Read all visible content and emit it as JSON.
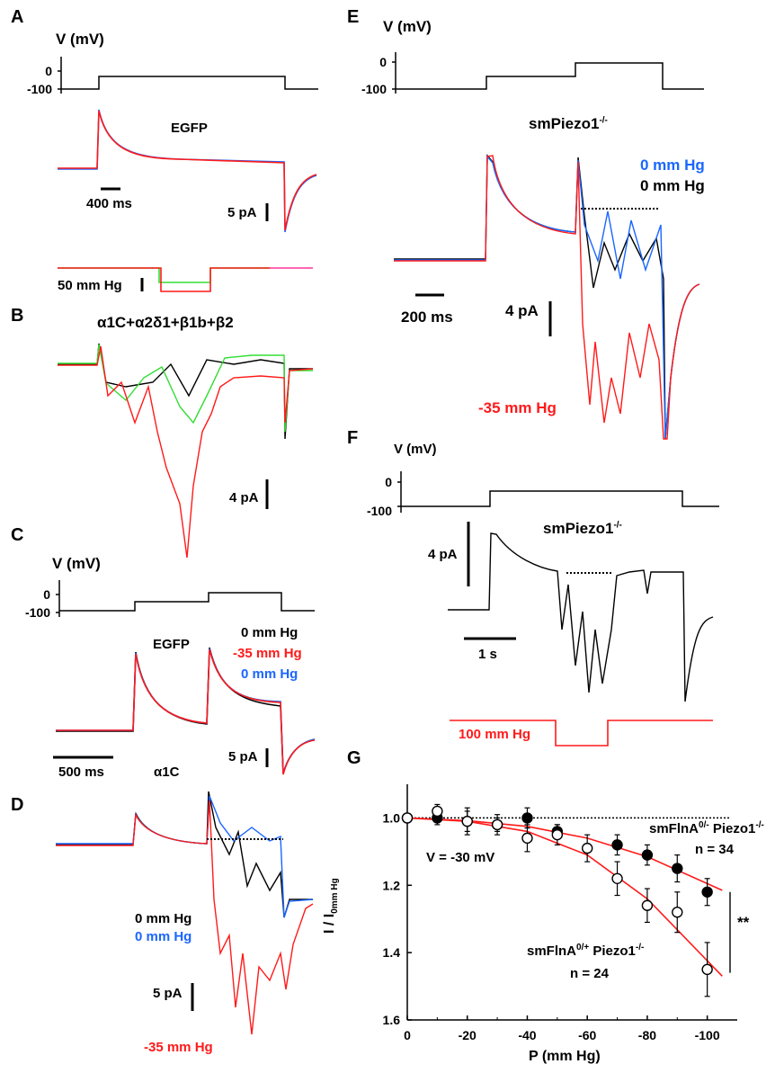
{
  "panels": {
    "A": {
      "letter": "A",
      "v_axis": {
        "title": "V (mV)",
        "ticks": [
          "0",
          "-100"
        ]
      },
      "condition": "EGFP",
      "time_scale": "400 ms",
      "current_scale": "5 pA",
      "pressure_scale": "50 mm Hg"
    },
    "B": {
      "letter": "B",
      "subunits": "α1C+α2δ1+β1b+β2",
      "current_scale": "4 pA"
    },
    "C": {
      "letter": "C",
      "v_axis": {
        "title": "V (mV)",
        "ticks": [
          "0",
          "-100"
        ]
      },
      "condition": "EGFP",
      "legend": [
        "0 mm Hg",
        "-35 mm Hg",
        "0 mm Hg"
      ],
      "time_scale": "500 ms",
      "current_scale": "5 pA",
      "subunit": "α1C"
    },
    "D": {
      "letter": "D",
      "legend": [
        "0 mm Hg",
        "0 mm Hg"
      ],
      "current_scale": "5 pA",
      "pressure": "-35 mm Hg"
    },
    "E": {
      "letter": "E",
      "v_axis": {
        "title": "V (mV)",
        "ticks": [
          "0",
          "-100"
        ]
      },
      "genotype": "smPiezo1",
      "genotype_sup": "-/-",
      "legend": [
        "0 mm Hg",
        "0 mm Hg"
      ],
      "time_scale": "200 ms",
      "current_scale": "4 pA",
      "pressure": "-35 mm Hg"
    },
    "F": {
      "letter": "F",
      "v_axis": {
        "title": "V (mV)",
        "ticks": [
          "0",
          "-100"
        ]
      },
      "genotype": "smPiezo1",
      "genotype_sup": "-/-",
      "current_scale": "4 pA",
      "time_scale": "1 s",
      "pressure": "100 mm Hg"
    },
    "G": {
      "letter": "G",
      "voltage": "V = -30 mV",
      "group1": {
        "name": "smFlnA",
        "sup1": "0/-",
        "name2": " Piezo1",
        "sup2": "-/-",
        "n": "n = 34"
      },
      "group2": {
        "name": "smFlnA",
        "sup1": "0/+",
        "name2": " Piezo1",
        "sup2": "-/-",
        "n": "n = 24"
      },
      "significance": "**",
      "ylabel_main": "I / I",
      "ylabel_sub": "0mm Hg"
    }
  },
  "colors": {
    "red": "#ff1a1a",
    "blue": "#1a66ff",
    "green": "#33dd33",
    "black": "#000000",
    "pink": "#ff3399"
  },
  "chart_data": {
    "type": "scatter",
    "title": "",
    "xlabel": "P (mm Hg)",
    "ylabel": "I / I0mm Hg",
    "x_ticks": [
      "0",
      "-20",
      "-40",
      "-60",
      "-80",
      "-100"
    ],
    "y_ticks": [
      "1.0",
      "1.2",
      "1.4",
      "1.6"
    ],
    "xlim": [
      0,
      -110
    ],
    "ylim": [
      0.9,
      1.6
    ],
    "y_inverted": true,
    "reference_line": 1.0,
    "series": [
      {
        "marker": "filled-circle",
        "x": [
          0,
          -10,
          -20,
          -30,
          -40,
          -50,
          -70,
          -80,
          -90,
          -100
        ],
        "y": [
          1.0,
          1.0,
          1.01,
          1.02,
          1.0,
          1.04,
          1.08,
          1.11,
          1.15,
          1.22
        ],
        "err": [
          0.01,
          0.02,
          0.03,
          0.02,
          0.03,
          0.02,
          0.03,
          0.03,
          0.04,
          0.04
        ]
      },
      {
        "marker": "open-circle",
        "x": [
          0,
          -10,
          -20,
          -30,
          -40,
          -50,
          -60,
          -70,
          -80,
          -90,
          -100
        ],
        "y": [
          1.0,
          0.98,
          1.01,
          1.02,
          1.06,
          1.05,
          1.09,
          1.18,
          1.26,
          1.28,
          1.45
        ],
        "err": [
          0.01,
          0.02,
          0.04,
          0.03,
          0.04,
          0.03,
          0.04,
          0.05,
          0.05,
          0.06,
          0.08
        ]
      }
    ],
    "fits": [
      {
        "x": [
          0,
          -20,
          -40,
          -60,
          -80,
          -105
        ],
        "y": [
          1.0,
          1.008,
          1.025,
          1.06,
          1.115,
          1.215
        ]
      },
      {
        "x": [
          0,
          -20,
          -40,
          -60,
          -80,
          -105
        ],
        "y": [
          1.0,
          1.01,
          1.04,
          1.11,
          1.24,
          1.47
        ]
      }
    ]
  }
}
